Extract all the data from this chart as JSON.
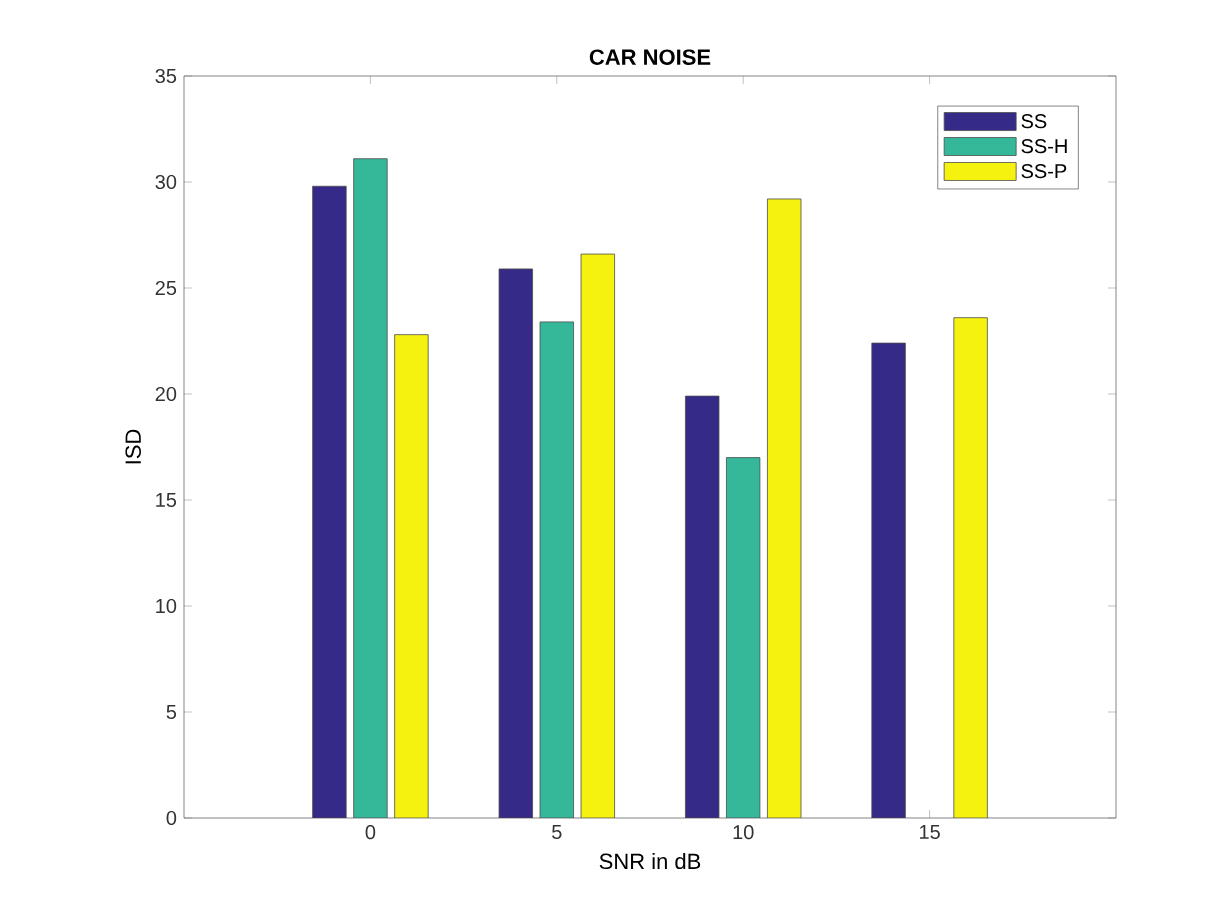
{
  "chart_data": {
    "type": "bar",
    "title": "CAR NOISE",
    "xlabel": "SNR in dB",
    "ylabel": "ISD",
    "x": [
      0,
      5,
      10,
      15
    ],
    "series": [
      {
        "name": "SS",
        "color": "#352a87",
        "values": [
          29.8,
          25.9,
          19.9,
          22.4
        ]
      },
      {
        "name": "SS-H",
        "color": "#35b79a",
        "values": [
          31.1,
          23.4,
          17.0,
          null
        ]
      },
      {
        "name": "SS-P",
        "color": "#f5f20f",
        "values": [
          22.8,
          26.6,
          29.2,
          23.6
        ]
      }
    ],
    "xlim": [
      -5,
      20
    ],
    "xticks": [
      0,
      5,
      10,
      15
    ],
    "ylim": [
      0,
      35
    ],
    "yticks": [
      0,
      5,
      10,
      15,
      20,
      25,
      30,
      35
    ],
    "grid": false,
    "legend": "top right"
  }
}
